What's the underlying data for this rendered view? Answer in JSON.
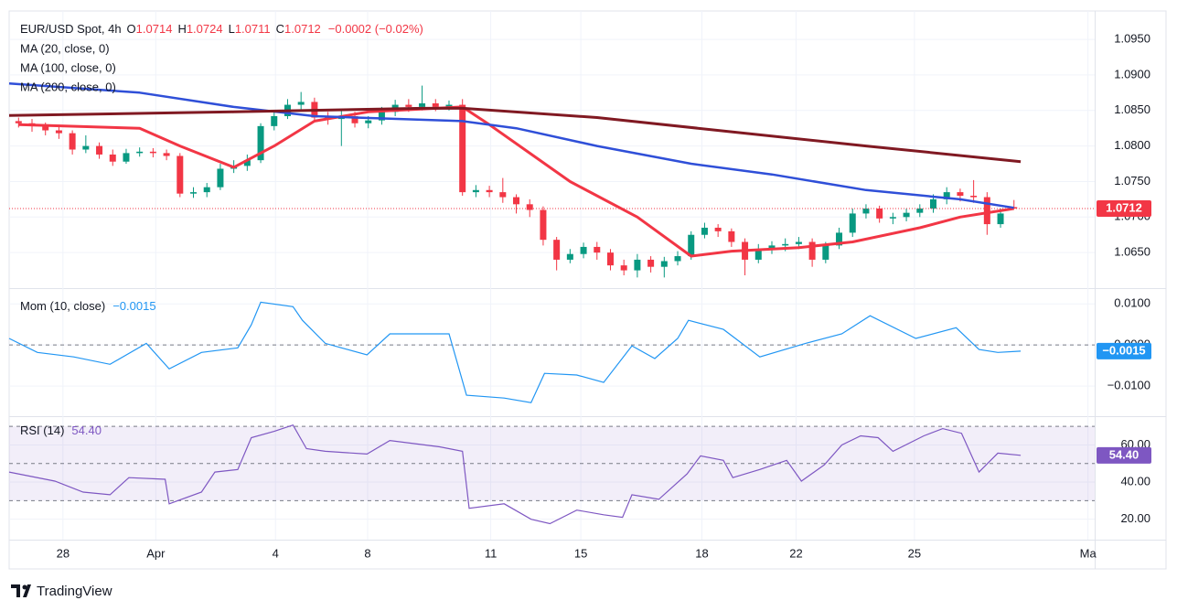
{
  "chart_data": [
    {
      "type": "candlestick",
      "title": "EUR/USD Spot, 4h",
      "ohlc_keys": [
        "O",
        "H",
        "L",
        "C"
      ],
      "change_label": "−0.0002 (−0.02%)",
      "up_color": "#089981",
      "down_color": "#f23645",
      "open": [
        1.0835,
        1.0832,
        1.0828,
        1.0822,
        1.0818,
        1.0795,
        1.08,
        1.0788,
        1.0778,
        1.079,
        1.0792,
        1.079,
        1.0786,
        1.0733,
        1.0735,
        1.0742,
        1.0768,
        1.0772,
        1.078,
        1.0828,
        1.0842,
        1.0858,
        1.0862,
        1.084,
        1.0838,
        1.0842,
        1.0832,
        1.0836,
        1.0848,
        1.0858,
        1.0855,
        1.086,
        1.0855,
        1.0858,
        1.0735,
        1.0738,
        1.0735,
        1.0728,
        1.0718,
        1.071,
        1.0668,
        1.064,
        1.0648,
        1.0658,
        1.065,
        1.0632,
        1.0625,
        1.064,
        1.063,
        1.0638,
        1.0645,
        1.0675,
        1.0685,
        1.068,
        1.0665,
        1.064,
        1.0655,
        1.066,
        1.0662,
        1.0665,
        1.064,
        1.066,
        1.0678,
        1.0705,
        1.0712,
        1.0698,
        1.07,
        1.0706,
        1.0712,
        1.0725,
        1.0735,
        1.073,
        1.0728,
        1.069,
        1.0714
      ],
      "high": [
        1.084,
        1.0838,
        1.0833,
        1.083,
        1.0822,
        1.0815,
        1.0805,
        1.0795,
        1.0796,
        1.0798,
        1.0797,
        1.0795,
        1.079,
        1.0742,
        1.0748,
        1.0775,
        1.078,
        1.0788,
        1.0832,
        1.0848,
        1.0866,
        1.0876,
        1.0868,
        1.0848,
        1.085,
        1.0848,
        1.0842,
        1.0855,
        1.0865,
        1.0866,
        1.0885,
        1.0866,
        1.0864,
        1.0866,
        1.0745,
        1.0744,
        1.0755,
        1.0732,
        1.0725,
        1.0715,
        1.0672,
        1.0655,
        1.0664,
        1.0665,
        1.0655,
        1.064,
        1.0648,
        1.0645,
        1.0644,
        1.0652,
        1.068,
        1.0692,
        1.069,
        1.0684,
        1.067,
        1.0662,
        1.0666,
        1.067,
        1.0672,
        1.067,
        1.0665,
        1.0685,
        1.0712,
        1.0718,
        1.0716,
        1.0706,
        1.0712,
        1.0718,
        1.0732,
        1.0742,
        1.074,
        1.0752,
        1.0735,
        1.0712,
        1.0724
      ],
      "low": [
        1.0826,
        1.082,
        1.0815,
        1.081,
        1.0788,
        1.079,
        1.0782,
        1.0772,
        1.0775,
        1.0785,
        1.0784,
        1.078,
        1.0728,
        1.0727,
        1.0728,
        1.0738,
        1.0762,
        1.0765,
        1.0776,
        1.0822,
        1.0838,
        1.085,
        1.0834,
        1.083,
        1.08,
        1.0826,
        1.0825,
        1.083,
        1.0842,
        1.0848,
        1.085,
        1.0849,
        1.085,
        1.073,
        1.0728,
        1.0728,
        1.072,
        1.0705,
        1.07,
        1.066,
        1.0625,
        1.0635,
        1.0642,
        1.064,
        1.0625,
        1.0618,
        1.0615,
        1.0622,
        1.0615,
        1.0632,
        1.064,
        1.067,
        1.0672,
        1.0658,
        1.0618,
        1.0635,
        1.0648,
        1.0652,
        1.0655,
        1.063,
        1.0635,
        1.0655,
        1.0672,
        1.0698,
        1.0692,
        1.069,
        1.0694,
        1.07,
        1.0706,
        1.0718,
        1.0722,
        1.072,
        1.0675,
        1.0685,
        1.0711
      ],
      "close": [
        1.0832,
        1.0828,
        1.0822,
        1.0818,
        1.0795,
        1.08,
        1.0788,
        1.0778,
        1.079,
        1.0792,
        1.079,
        1.0786,
        1.0733,
        1.0735,
        1.0742,
        1.0768,
        1.0772,
        1.078,
        1.0828,
        1.0842,
        1.0858,
        1.0862,
        1.084,
        1.0838,
        1.0842,
        1.0832,
        1.0836,
        1.0848,
        1.0858,
        1.0855,
        1.086,
        1.0855,
        1.0858,
        1.0735,
        1.0738,
        1.0735,
        1.0728,
        1.0718,
        1.071,
        1.0668,
        1.064,
        1.0648,
        1.0658,
        1.065,
        1.0632,
        1.0625,
        1.064,
        1.063,
        1.0638,
        1.0645,
        1.0675,
        1.0685,
        1.068,
        1.0665,
        1.064,
        1.0655,
        1.066,
        1.0662,
        1.0665,
        1.064,
        1.066,
        1.0678,
        1.0705,
        1.0712,
        1.0698,
        1.07,
        1.0706,
        1.0712,
        1.0725,
        1.0735,
        1.073,
        1.0728,
        1.069,
        1.0705,
        1.0712
      ],
      "series": [
        {
          "name": "MA (20, close, 0)",
          "color": "#f23645",
          "width": 3,
          "x": [
            0,
            9,
            12,
            16,
            19,
            22,
            26,
            33,
            35,
            38,
            41,
            46,
            50,
            53,
            58,
            62,
            67,
            70,
            74
          ],
          "values": [
            1.083,
            1.0825,
            1.08,
            1.077,
            1.08,
            1.0835,
            1.0848,
            1.0855,
            1.083,
            1.079,
            1.075,
            1.07,
            1.0645,
            1.0652,
            1.0657,
            1.0665,
            1.0685,
            1.07,
            1.0712
          ]
        },
        {
          "name": "MA (100, close, 0)",
          "color": "#2f4fd8",
          "width": 2.5,
          "x": [
            -0.7,
            9,
            16,
            22,
            33,
            37,
            43,
            50,
            56,
            63,
            70,
            74
          ],
          "values": [
            1.0888,
            1.0875,
            1.0855,
            1.0842,
            1.0835,
            1.0825,
            1.08,
            1.0775,
            1.076,
            1.0738,
            1.0725,
            1.0713
          ]
        },
        {
          "name": "MA (200, close, 0)",
          "color": "#801922",
          "width": 3,
          "x": [
            -0.7,
            16,
            30,
            33,
            43,
            53,
            63,
            74.5
          ],
          "values": [
            1.0843,
            1.0848,
            1.0853,
            1.0853,
            1.084,
            1.082,
            1.08,
            1.0778
          ]
        }
      ],
      "ylim": [
        1.06,
        1.099
      ],
      "yticks": [
        {
          "value": 1.095,
          "label": "1.0950"
        },
        {
          "value": 1.09,
          "label": "1.0900"
        },
        {
          "value": 1.085,
          "label": "1.0850"
        },
        {
          "value": 1.08,
          "label": "1.0800"
        },
        {
          "value": 1.075,
          "label": "1.0750"
        },
        {
          "value": 1.07,
          "label": "1.0700"
        },
        {
          "value": 1.065,
          "label": "1.0650"
        }
      ],
      "xlim": [
        -0.7,
        80
      ],
      "xticks": [
        {
          "value": 3.3,
          "label": "28"
        },
        {
          "value": 10.2,
          "label": "Apr"
        },
        {
          "value": 19.1,
          "label": "4"
        },
        {
          "value": 25.95,
          "label": "8"
        },
        {
          "value": 35.1,
          "label": "11"
        },
        {
          "value": 41.8,
          "label": "15"
        },
        {
          "value": 50.8,
          "label": "18"
        },
        {
          "value": 57.8,
          "label": "22"
        },
        {
          "value": 66.6,
          "label": "25"
        },
        {
          "value": 79.5,
          "label": "Ma"
        }
      ]
    },
    {
      "type": "line",
      "title": "Mom (10, close)",
      "last_value_label": "−0.0015",
      "color": "#2196f3",
      "x": [
        -0.7,
        1.4,
        4.1,
        6.8,
        9.5,
        11.2,
        13.6,
        16.3,
        17.3,
        18,
        20.4,
        21.1,
        22.8,
        25.9,
        27.6,
        32,
        33.3,
        36.1,
        38.1,
        39.1,
        41.5,
        43.5,
        45.6,
        47.3,
        49,
        49.8,
        52.4,
        55.1,
        58.5,
        61.2,
        63.3,
        66.7,
        69.7,
        71.4,
        72.8,
        74.5
      ],
      "values": [
        0.0016,
        -0.0018,
        -0.0029,
        -0.0047,
        0.0004,
        -0.0058,
        -0.0018,
        -0.0007,
        0.0049,
        0.0104,
        0.0093,
        0.006,
        0.0004,
        -0.0024,
        0.0027,
        0.0027,
        -0.0122,
        -0.0129,
        -0.014,
        -0.0069,
        -0.0073,
        -0.0091,
        -0.0002,
        -0.0033,
        0.0016,
        0.006,
        0.0038,
        -0.0029,
        0.0004,
        0.0027,
        0.0071,
        0.0016,
        0.0042,
        -0.0011,
        -0.0018,
        -0.0015
      ],
      "ylim": [
        -0.0173,
        0.0136
      ],
      "yticks": [
        {
          "value": 0.01,
          "label": "0.0100"
        },
        {
          "value": 0,
          "label": "0.0000"
        },
        {
          "value": -0.01,
          "label": "−0.0100"
        }
      ],
      "levels": [
        0
      ]
    },
    {
      "type": "line",
      "title": "RSI (14)",
      "last_value_label": "54.40",
      "color": "#7e57c2",
      "x": [
        -0.7,
        2.7,
        4.8,
        6.8,
        8.2,
        10.9,
        11.2,
        13.6,
        14.6,
        16.3,
        17.3,
        19,
        20.4,
        21.4,
        22.8,
        25.9,
        27.6,
        31.3,
        33,
        33.5,
        36.1,
        38.1,
        39.5,
        41.5,
        43.5,
        44.9,
        45.6,
        47.6,
        49.7,
        50.7,
        52.4,
        53.1,
        55.1,
        57.1,
        58.2,
        59.9,
        61.2,
        62.6,
        63.9,
        65,
        67.3,
        68.7,
        70.1,
        71.4,
        72.8,
        74.5
      ],
      "values": [
        45.4,
        40.5,
        34.6,
        33.2,
        42.4,
        41.5,
        28.3,
        34.6,
        45.4,
        46.8,
        63.9,
        67.3,
        70.7,
        58,
        56.6,
        55.1,
        62.4,
        59,
        56.6,
        25.9,
        28.3,
        20,
        17.6,
        24.9,
        22.4,
        21,
        33.2,
        30.7,
        44.4,
        54.1,
        51.7,
        42.4,
        46.8,
        51.7,
        40.5,
        49.3,
        60,
        64.9,
        63.9,
        56.6,
        64.9,
        68.8,
        66.3,
        45.4,
        55.6,
        54.4
      ],
      "ylim": [
        9,
        75
      ],
      "yticks": [
        {
          "value": 60,
          "label": "60.00"
        },
        {
          "value": 40,
          "label": "40.00"
        },
        {
          "value": 20,
          "label": "20.00"
        }
      ],
      "levels": [
        70,
        50,
        30
      ],
      "band": [
        30,
        70
      ]
    }
  ],
  "footer": {
    "brand": "TradingView"
  }
}
